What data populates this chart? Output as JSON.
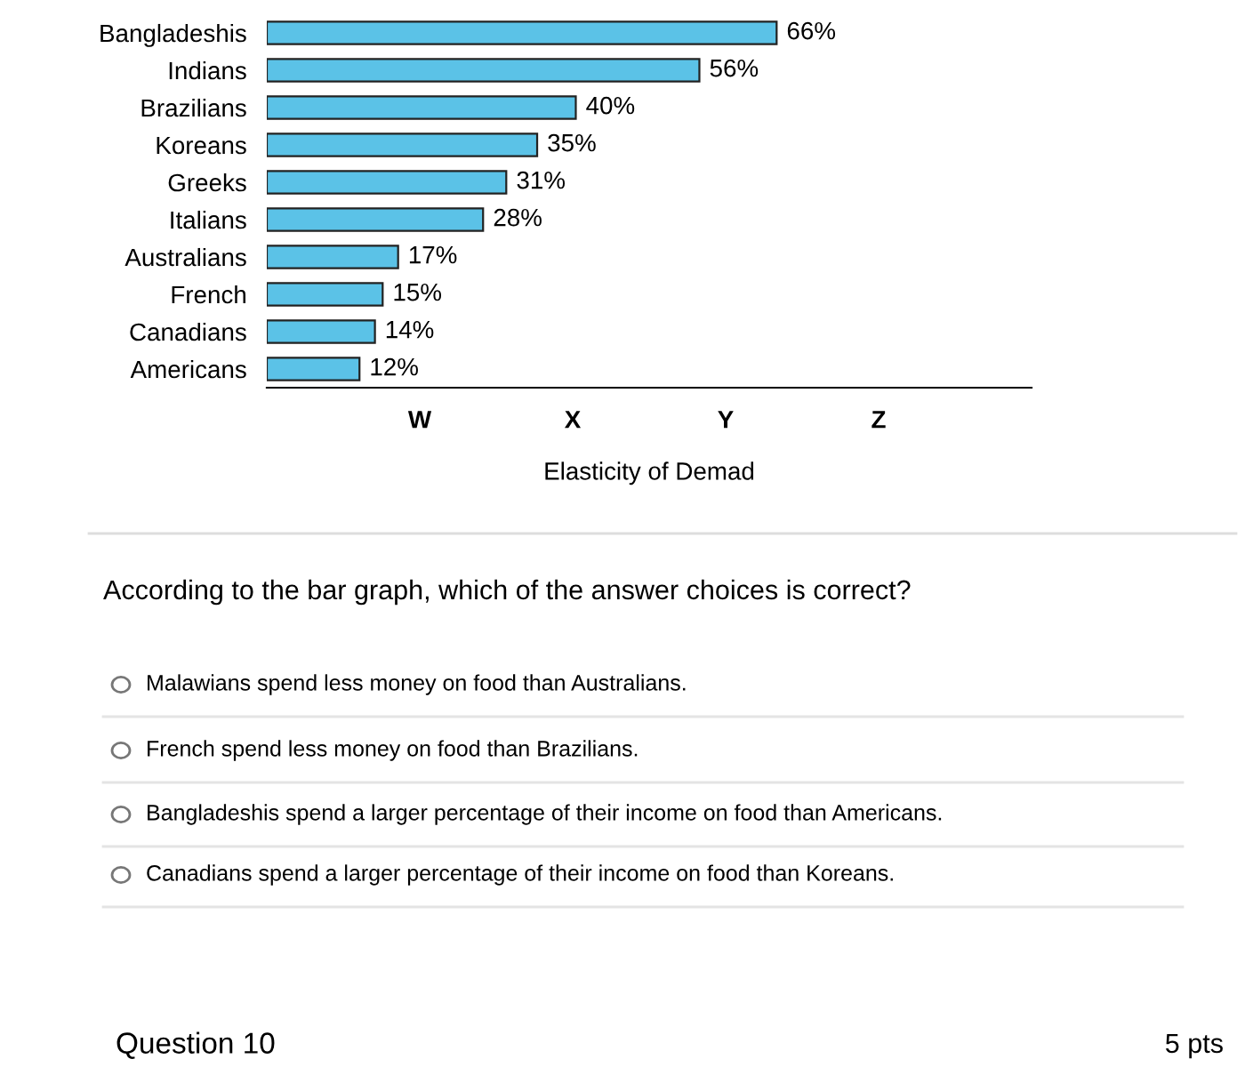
{
  "chart_data": {
    "type": "bar",
    "orientation": "horizontal",
    "categories": [
      "Bangladeshis",
      "Indians",
      "Brazilians",
      "Koreans",
      "Greeks",
      "Italians",
      "Australians",
      "French",
      "Canadians",
      "Americans"
    ],
    "values": [
      66,
      56,
      40,
      35,
      31,
      28,
      17,
      15,
      14,
      12
    ],
    "value_labels": [
      "66%",
      "56%",
      "40%",
      "35%",
      "31%",
      "28%",
      "17%",
      "15%",
      "14%",
      "12%"
    ],
    "color": "#5bc2e7",
    "xlabel": "Elasticity of Demad",
    "grid": false,
    "legend": false,
    "annotations": [
      "W",
      "X",
      "Y",
      "Z",
      "According to the bar graph, which of the answer choices is correct?",
      "Malawians spend less money on food than Australians.",
      "French spend less money on food than Brazilians.",
      "Bangladeshis spend a larger percentage of their income on food than Americans.",
      "Canadians spend a larger percentage of their income on food than Koreans.",
      "Question 10",
      "5 pts"
    ]
  }
}
